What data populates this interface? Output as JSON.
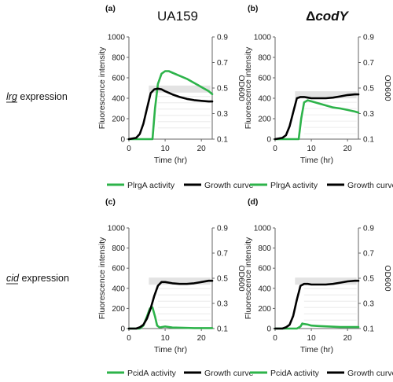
{
  "figure": {
    "columns": [
      {
        "title": "UA159",
        "title_style": "normal"
      },
      {
        "title": "ΔcodY",
        "title_style": "bold-italic-suffix",
        "prefix": "Δ",
        "suffix": "codY"
      }
    ],
    "rows": [
      {
        "label_italic": "lrg",
        "label_rest": " expression"
      },
      {
        "label_italic": "cid",
        "label_rest": " expression"
      }
    ]
  },
  "chart_data": [
    {
      "panel": "(a)",
      "type": "line",
      "xlabel": "Time (hr)",
      "ylabel_left": "Fluorescence intensity",
      "ylabel_right": "OD600",
      "xlim": [
        0,
        23
      ],
      "xticks": [
        0,
        10,
        20
      ],
      "ylim_left": [
        0,
        1000
      ],
      "yticks_left": [
        0,
        200,
        400,
        600,
        800,
        1000
      ],
      "ylim_right": [
        0.1,
        0.9
      ],
      "yticks_right": [
        0.1,
        0.3,
        0.5,
        0.7,
        0.9
      ],
      "series": [
        {
          "name": "PlrgA activity",
          "axis": "left",
          "color": "#2db34a",
          "x": [
            0,
            5,
            6.5,
            7.2,
            8,
            9,
            10,
            11,
            12,
            14,
            16,
            18,
            20,
            22,
            23
          ],
          "y": [
            0,
            0,
            0,
            300,
            540,
            640,
            665,
            665,
            650,
            620,
            590,
            550,
            510,
            470,
            440
          ]
        },
        {
          "name": "Growth curve",
          "axis": "right",
          "color": "#000000",
          "x": [
            0,
            2,
            3,
            4,
            5,
            6,
            7,
            8,
            9,
            10,
            12,
            14,
            16,
            18,
            20,
            22,
            23
          ],
          "y": [
            0.1,
            0.11,
            0.14,
            0.22,
            0.34,
            0.46,
            0.49,
            0.495,
            0.49,
            0.475,
            0.45,
            0.43,
            0.415,
            0.405,
            0.4,
            0.395,
            0.395
          ]
        }
      ]
    },
    {
      "panel": "(b)",
      "type": "line",
      "xlabel": "Time (hr)",
      "ylabel_left": "Fluorescence intensity",
      "ylabel_right": "OD600",
      "xlim": [
        0,
        23
      ],
      "xticks": [
        0,
        10,
        20
      ],
      "ylim_left": [
        0,
        1000
      ],
      "yticks_left": [
        0,
        200,
        400,
        600,
        800,
        1000
      ],
      "ylim_right": [
        0.1,
        0.9
      ],
      "yticks_right": [
        0.1,
        0.3,
        0.5,
        0.7,
        0.9
      ],
      "series": [
        {
          "name": "PlrgA activity",
          "axis": "left",
          "color": "#2db34a",
          "x": [
            0,
            5,
            6.5,
            7.2,
            8,
            9,
            10,
            12,
            14,
            16,
            18,
            20,
            22,
            23
          ],
          "y": [
            0,
            0,
            0,
            200,
            360,
            380,
            370,
            350,
            330,
            310,
            300,
            285,
            270,
            260
          ]
        },
        {
          "name": "Growth curve",
          "axis": "right",
          "color": "#000000",
          "x": [
            0,
            2,
            3,
            4,
            5,
            6,
            7,
            8,
            9,
            10,
            12,
            14,
            16,
            18,
            20,
            22,
            23
          ],
          "y": [
            0.1,
            0.11,
            0.13,
            0.2,
            0.31,
            0.42,
            0.43,
            0.43,
            0.425,
            0.42,
            0.42,
            0.42,
            0.425,
            0.435,
            0.445,
            0.45,
            0.45
          ]
        }
      ]
    },
    {
      "panel": "(c)",
      "type": "line",
      "xlabel": "Time (hr)",
      "ylabel_left": "Fluorescence intensity",
      "ylabel_right": "OD600",
      "xlim": [
        0,
        23
      ],
      "xticks": [
        0,
        10,
        20
      ],
      "ylim_left": [
        0,
        1000
      ],
      "yticks_left": [
        0,
        200,
        400,
        600,
        800,
        1000
      ],
      "ylim_right": [
        0.1,
        0.9
      ],
      "yticks_right": [
        0.1,
        0.3,
        0.5,
        0.7,
        0.9
      ],
      "series": [
        {
          "name": "PcidA activity",
          "axis": "left",
          "color": "#2db34a",
          "x": [
            0,
            3,
            4,
            5,
            5.8,
            6.5,
            7.2,
            7.8,
            8.5,
            9,
            10,
            12,
            15,
            18,
            21,
            23
          ],
          "y": [
            0,
            0,
            30,
            120,
            200,
            210,
            120,
            30,
            10,
            15,
            20,
            10,
            8,
            5,
            5,
            5
          ]
        },
        {
          "name": "Growth curve",
          "axis": "right",
          "color": "#000000",
          "x": [
            0,
            2,
            3,
            4,
            5,
            6,
            7,
            8,
            9,
            10,
            12,
            14,
            16,
            18,
            20,
            22,
            23
          ],
          "y": [
            0.1,
            0.1,
            0.11,
            0.13,
            0.18,
            0.26,
            0.36,
            0.44,
            0.47,
            0.47,
            0.46,
            0.455,
            0.455,
            0.46,
            0.47,
            0.48,
            0.48
          ]
        }
      ]
    },
    {
      "panel": "(d)",
      "type": "line",
      "xlabel": "Time (hr)",
      "ylabel_left": "Fluorescence intensity",
      "ylabel_right": "OD600",
      "xlim": [
        0,
        23
      ],
      "xticks": [
        0,
        10,
        20
      ],
      "ylim_left": [
        0,
        1000
      ],
      "yticks_left": [
        0,
        200,
        400,
        600,
        800,
        1000
      ],
      "ylim_right": [
        0.1,
        0.9
      ],
      "yticks_right": [
        0.1,
        0.3,
        0.5,
        0.7,
        0.9
      ],
      "series": [
        {
          "name": "PcidA activity",
          "axis": "left",
          "color": "#2db34a",
          "x": [
            0,
            5,
            6,
            7,
            7.5,
            8,
            9,
            10,
            12,
            15,
            18,
            21,
            23
          ],
          "y": [
            0,
            0,
            0,
            20,
            50,
            45,
            40,
            30,
            25,
            20,
            15,
            15,
            15
          ]
        },
        {
          "name": "Growth curve",
          "axis": "right",
          "color": "#000000",
          "x": [
            0,
            2,
            3,
            4,
            5,
            6,
            7,
            8,
            9,
            10,
            12,
            14,
            16,
            18,
            20,
            22,
            23
          ],
          "y": [
            0.1,
            0.1,
            0.11,
            0.13,
            0.2,
            0.33,
            0.44,
            0.455,
            0.455,
            0.45,
            0.45,
            0.45,
            0.455,
            0.465,
            0.475,
            0.48,
            0.48
          ]
        }
      ]
    }
  ]
}
